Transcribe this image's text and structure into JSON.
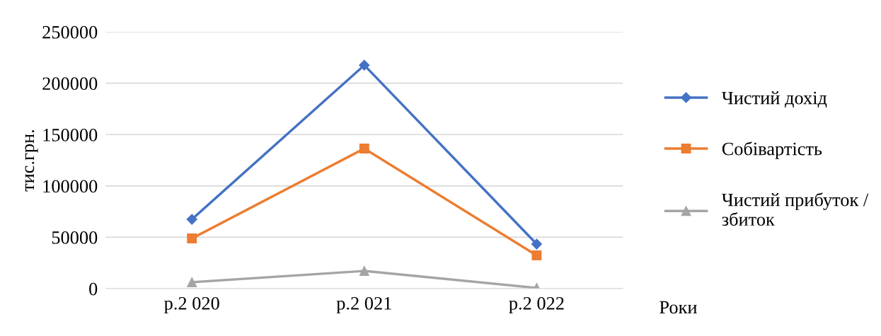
{
  "chart_data": {
    "type": "line",
    "ylabel": "тис.грн.",
    "xlabel": "Роки",
    "categories": [
      "р.2 020",
      "р.2 021",
      "р.2 022"
    ],
    "series": [
      {
        "name": "Чистий дохід",
        "color": "#4472c4",
        "marker": "diamond",
        "values": [
          67500,
          217600,
          43400
        ]
      },
      {
        "name": "Собівартість",
        "color": "#ed7d31",
        "marker": "square",
        "values": [
          48900,
          136400,
          32400
        ]
      },
      {
        "name": "Чистий прибуток / збиток",
        "color": "#a5a5a5",
        "marker": "triangle",
        "values": [
          6200,
          17200,
          700
        ]
      }
    ],
    "ylim": [
      0,
      250000
    ],
    "yticks": [
      0,
      50000,
      100000,
      150000,
      200000,
      250000
    ],
    "grid": "y",
    "legend": "right"
  }
}
